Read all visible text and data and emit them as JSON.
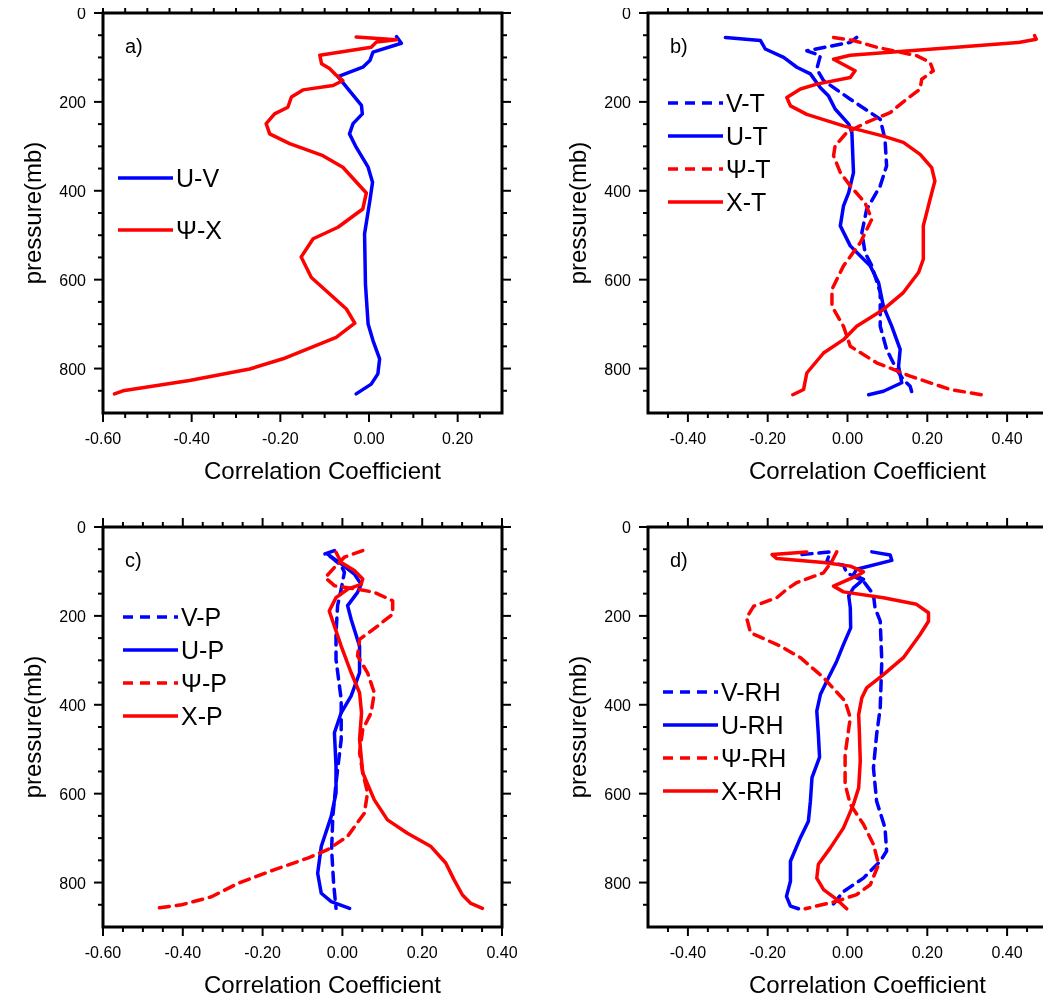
{
  "chart_data": [
    {
      "type": "line",
      "title": "a)",
      "xlabel": "Correlation Coefficient",
      "ylabel": "pressure(mb)",
      "xlim": [
        -0.6,
        0.3
      ],
      "ylim": [
        900,
        0
      ],
      "legend": "left",
      "grid": false,
      "xticks": [
        {
          "value": -0.6,
          "label": "-0.60"
        },
        {
          "value": -0.55,
          "label": null
        },
        {
          "value": -0.5,
          "label": null
        },
        {
          "value": -0.45,
          "label": null
        },
        {
          "value": -0.4,
          "label": "-0.40"
        },
        {
          "value": -0.35,
          "label": null
        },
        {
          "value": -0.3,
          "label": null
        },
        {
          "value": -0.25,
          "label": null
        },
        {
          "value": -0.2,
          "label": "-0.20"
        },
        {
          "value": -0.15,
          "label": null
        },
        {
          "value": -0.1,
          "label": null
        },
        {
          "value": -0.05,
          "label": null
        },
        {
          "value": 0,
          "label": "0.00"
        },
        {
          "value": 0.05,
          "label": null
        },
        {
          "value": 0.1,
          "label": null
        },
        {
          "value": 0.15,
          "label": null
        },
        {
          "value": 0.2,
          "label": "0.20"
        },
        {
          "value": 0.25,
          "label": null
        }
      ],
      "yticks": [
        0,
        {
          "value": 50,
          "label": null
        },
        {
          "value": 100,
          "label": null
        },
        {
          "value": 150,
          "label": null
        },
        200,
        {
          "value": 250,
          "label": null
        },
        {
          "value": 300,
          "label": null
        },
        {
          "value": 350,
          "label": null
        },
        400,
        {
          "value": 450,
          "label": null
        },
        {
          "value": 500,
          "label": null
        },
        {
          "value": 550,
          "label": null
        },
        600,
        {
          "value": 650,
          "label": null
        },
        {
          "value": 700,
          "label": null
        },
        {
          "value": 750,
          "label": null
        },
        800,
        {
          "value": 850,
          "label": null
        }
      ],
      "series": [
        {
          "name": "U-V",
          "color": "#0000ff",
          "line_style": "solid",
          "x": [
            0.062,
            0.073,
            0.009,
            0.002,
            -0.014,
            -0.07,
            -0.017,
            -0.015,
            -0.036,
            -0.044,
            -0.029,
            -0.002,
            0.008,
            0.002,
            -0.01,
            -0.008,
            -0.002,
            0.009,
            0.024,
            0.02,
            0.005,
            -0.029
          ],
          "values": [
            53,
            68,
            88,
            107,
            122,
            143,
            208,
            227,
            249,
            272,
            302,
            347,
            381,
            422,
            497,
            610,
            700,
            737,
            778,
            812,
            835,
            857
          ]
        },
        {
          "name": "Ψ-X",
          "color": "#ff0000",
          "line_style": "solid",
          "x": [
            -0.029,
            0.062,
            0.017,
            0.005,
            -0.111,
            -0.107,
            -0.089,
            -0.074,
            -0.059,
            -0.081,
            -0.149,
            -0.175,
            -0.183,
            -0.213,
            -0.232,
            -0.224,
            -0.179,
            -0.104,
            -0.059,
            -0.006,
            -0.014,
            -0.07,
            -0.126,
            -0.153,
            -0.13,
            -0.051,
            -0.032,
            -0.074,
            -0.194,
            -0.269,
            -0.405,
            -0.555,
            -0.574
          ],
          "values": [
            54,
            60,
            65,
            77,
            95,
            114,
            125,
            140,
            152,
            163,
            173,
            189,
            212,
            227,
            249,
            272,
            294,
            321,
            347,
            405,
            441,
            482,
            508,
            549,
            595,
            666,
            698,
            730,
            778,
            801,
            827,
            850,
            857
          ]
        }
      ]
    },
    {
      "type": "line",
      "title": "b)",
      "xlabel": "Correlation Coefficient",
      "ylabel": "pressure(mb)",
      "xlim": [
        -0.5,
        0.5
      ],
      "ylim": [
        900,
        0
      ],
      "legend": "top left",
      "grid": false,
      "xticks": [
        {
          "value": -0.45,
          "label": null
        },
        {
          "value": -0.4,
          "label": "-0.40"
        },
        {
          "value": -0.35,
          "label": null
        },
        {
          "value": -0.3,
          "label": null
        },
        {
          "value": -0.25,
          "label": null
        },
        {
          "value": -0.2,
          "label": "-0.20"
        },
        {
          "value": -0.15,
          "label": null
        },
        {
          "value": -0.1,
          "label": null
        },
        {
          "value": -0.05,
          "label": null
        },
        {
          "value": 0,
          "label": "0.00"
        },
        {
          "value": 0.05,
          "label": null
        },
        {
          "value": 0.1,
          "label": null
        },
        {
          "value": 0.15,
          "label": null
        },
        {
          "value": 0.2,
          "label": "0.20"
        },
        {
          "value": 0.25,
          "label": null
        },
        {
          "value": 0.3,
          "label": null
        },
        {
          "value": 0.35,
          "label": null
        },
        {
          "value": 0.4,
          "label": "0.40"
        },
        {
          "value": 0.45,
          "label": null
        }
      ],
      "yticks": [
        0,
        {
          "value": 50,
          "label": null
        },
        {
          "value": 100,
          "label": null
        },
        {
          "value": 150,
          "label": null
        },
        200,
        {
          "value": 250,
          "label": null
        },
        {
          "value": 300,
          "label": null
        },
        {
          "value": 350,
          "label": null
        },
        400,
        {
          "value": 450,
          "label": null
        },
        {
          "value": 500,
          "label": null
        },
        {
          "value": 550,
          "label": null
        },
        600,
        {
          "value": 650,
          "label": null
        },
        {
          "value": 700,
          "label": null
        },
        {
          "value": 750,
          "label": null
        },
        800,
        {
          "value": 850,
          "label": null
        }
      ],
      "series": [
        {
          "name": "V-T",
          "color": "#0000ff",
          "line_style": "dashed",
          "x": [
            0.023,
            0.007,
            -0.102,
            -0.068,
            -0.077,
            -0.06,
            0.007,
            0.082,
            0.094,
            0.098,
            0.082,
            0.048,
            0.036,
            0.044,
            0.061,
            0.082,
            0.082,
            0.098,
            0.123,
            0.14,
            0.157,
            0.163
          ],
          "values": [
            55,
            66,
            85,
            96,
            126,
            152,
            194,
            239,
            284,
            344,
            389,
            442,
            494,
            539,
            569,
            629,
            705,
            757,
            802,
            825,
            840,
            859
          ]
        },
        {
          "name": "U-T",
          "color": "#0000ff",
          "line_style": "solid",
          "x": [
            -0.306,
            -0.218,
            -0.206,
            -0.16,
            -0.127,
            -0.093,
            -0.068,
            -0.048,
            -0.031,
            0.003,
            0.011,
            0.015,
            0.003,
            -0.01,
            -0.018,
            0.007,
            0.057,
            0.078,
            0.09,
            0.111,
            0.132,
            0.128,
            0.136,
            0.09,
            0.053
          ],
          "values": [
            55,
            62,
            81,
            100,
            122,
            137,
            168,
            186,
            216,
            250,
            269,
            359,
            404,
            434,
            479,
            524,
            569,
            607,
            660,
            705,
            757,
            795,
            832,
            851,
            859
          ]
        },
        {
          "name": "Ψ-T",
          "color": "#ff0000",
          "line_style": "dashed",
          "x": [
            -0.035,
            0.015,
            0.073,
            0.173,
            0.207,
            0.215,
            0.186,
            0.182,
            0.148,
            0.107,
            0.048,
            -0.002,
            -0.031,
            -0.035,
            -0.018,
            0.007,
            0.044,
            0.061,
            0.032,
            -0.01,
            -0.039,
            -0.039,
            -0.01,
            0.007,
            0.073,
            0.157,
            0.257,
            0.336
          ],
          "values": [
            55,
            62,
            77,
            96,
            111,
            130,
            149,
            171,
            194,
            224,
            246,
            269,
            299,
            321,
            359,
            389,
            427,
            464,
            517,
            569,
            622,
            660,
            705,
            750,
            787,
            817,
            847,
            859
          ]
        },
        {
          "name": "X-T",
          "color": "#ff0000",
          "line_style": "solid",
          "x": [
            0.469,
            0.473,
            0.432,
            0.273,
            0.123,
            0.007,
            -0.035,
            0.019,
            0.007,
            -0.077,
            -0.118,
            -0.152,
            -0.143,
            -0.102,
            -0.01,
            0.09,
            0.14,
            0.182,
            0.211,
            0.219,
            0.207,
            0.19,
            0.19,
            0.178,
            0.14,
            0.09,
            0.023,
            -0.01,
            -0.06,
            -0.102,
            -0.11,
            -0.137
          ],
          "values": [
            51,
            59,
            66,
            77,
            87,
            95,
            104,
            130,
            145,
            160,
            171,
            190,
            209,
            228,
            254,
            277,
            291,
            318,
            348,
            378,
            419,
            479,
            554,
            584,
            629,
            667,
            705,
            735,
            765,
            810,
            847,
            859
          ]
        }
      ]
    },
    {
      "type": "line",
      "title": "c)",
      "xlabel": "Correlation Coefficient",
      "ylabel": "pressure(mb)",
      "xlim": [
        -0.6,
        0.4
      ],
      "ylim": [
        900,
        0
      ],
      "legend": "top left",
      "grid": false,
      "xticks": [
        {
          "value": -0.6,
          "label": "-0.60"
        },
        {
          "value": -0.55,
          "label": null
        },
        {
          "value": -0.5,
          "label": null
        },
        {
          "value": -0.45,
          "label": null
        },
        {
          "value": -0.4,
          "label": "-0.40"
        },
        {
          "value": -0.35,
          "label": null
        },
        {
          "value": -0.3,
          "label": null
        },
        {
          "value": -0.25,
          "label": null
        },
        {
          "value": -0.2,
          "label": "-0.20"
        },
        {
          "value": -0.15,
          "label": null
        },
        {
          "value": -0.1,
          "label": null
        },
        {
          "value": -0.05,
          "label": null
        },
        {
          "value": 0,
          "label": "0.00"
        },
        {
          "value": 0.05,
          "label": null
        },
        {
          "value": 0.1,
          "label": null
        },
        {
          "value": 0.15,
          "label": null
        },
        {
          "value": 0.2,
          "label": "0.20"
        },
        {
          "value": 0.25,
          "label": null
        },
        {
          "value": 0.3,
          "label": null
        },
        {
          "value": 0.35,
          "label": null
        },
        {
          "value": 0.4,
          "label": "0.40"
        }
      ],
      "yticks": [
        0,
        {
          "value": 50,
          "label": null
        },
        {
          "value": 100,
          "label": null
        },
        {
          "value": 150,
          "label": null
        },
        200,
        {
          "value": 250,
          "label": null
        },
        {
          "value": 300,
          "label": null
        },
        {
          "value": 350,
          "label": null
        },
        400,
        {
          "value": 450,
          "label": null
        },
        {
          "value": 500,
          "label": null
        },
        {
          "value": 550,
          "label": null
        },
        600,
        {
          "value": 650,
          "label": null
        },
        {
          "value": 700,
          "label": null
        },
        {
          "value": 750,
          "label": null
        },
        800,
        {
          "value": 850,
          "label": null
        }
      ],
      "series": [
        {
          "name": "V-P",
          "color": "#0000ff",
          "line_style": "dashed",
          "x": [
            -0.02,
            -0.045,
            -0.028,
            -0.003,
            0.005,
            -0.003,
            -0.012,
            -0.016,
            -0.016,
            -0.003,
            -0.003,
            -0.016,
            -0.024,
            -0.027,
            -0.022,
            -0.016
          ],
          "values": [
            53,
            61,
            68,
            87,
            102,
            140,
            177,
            238,
            298,
            388,
            478,
            576,
            651,
            726,
            802,
            858
          ]
        },
        {
          "name": "U-P",
          "color": "#0000ff",
          "line_style": "solid",
          "x": [
            -0.037,
            -0.003,
            0.03,
            0.047,
            0.038,
            0.013,
            0.022,
            0.043,
            0.043,
            0.022,
            -0.003,
            -0.02,
            -0.016,
            -0.016,
            -0.028,
            -0.053,
            -0.062,
            -0.053,
            -0.028,
            0.018
          ],
          "values": [
            61,
            83,
            106,
            129,
            147,
            177,
            208,
            268,
            328,
            380,
            418,
            463,
            538,
            598,
            651,
            719,
            779,
            824,
            843,
            858
          ]
        },
        {
          "name": "Ψ-P",
          "color": "#ff0000",
          "line_style": "dashed",
          "x": [
            0.051,
            0.005,
            -0.02,
            -0.043,
            -0.02,
            0.038,
            0.08,
            0.126,
            0.126,
            0.088,
            0.043,
            0.038,
            0.063,
            0.08,
            0.072,
            0.051,
            0.043,
            0.051,
            0.063,
            0.055,
            0.013,
            -0.037,
            -0.087,
            -0.17,
            -0.262,
            -0.328,
            -0.403,
            -0.47
          ],
          "values": [
            53,
            68,
            91,
            114,
            132,
            140,
            147,
            166,
            196,
            223,
            253,
            290,
            328,
            373,
            418,
            456,
            508,
            553,
            598,
            644,
            696,
            726,
            745,
            771,
            802,
            832,
            850,
            858
          ]
        },
        {
          "name": "X-P",
          "color": "#ff0000",
          "line_style": "solid",
          "x": [
            -0.016,
            -0.003,
            0.03,
            0.051,
            0.047,
            0.013,
            -0.016,
            -0.033,
            -0.02,
            -0.003,
            0.022,
            0.043,
            0.048,
            0.043,
            0.051,
            0.08,
            0.113,
            0.163,
            0.222,
            0.259,
            0.28,
            0.301,
            0.322,
            0.351
          ],
          "values": [
            57,
            80,
            98,
            117,
            129,
            140,
            159,
            189,
            223,
            268,
            328,
            373,
            418,
            478,
            553,
            614,
            659,
            689,
            719,
            756,
            794,
            828,
            847,
            858
          ]
        }
      ]
    },
    {
      "type": "line",
      "title": "d)",
      "xlabel": "Correlation Coefficient",
      "ylabel": "pressure(mb)",
      "xlim": [
        -0.5,
        0.5
      ],
      "ylim": [
        900,
        0
      ],
      "legend": "left",
      "grid": false,
      "xticks": [
        {
          "value": -0.45,
          "label": null
        },
        {
          "value": -0.4,
          "label": "-0.40"
        },
        {
          "value": -0.35,
          "label": null
        },
        {
          "value": -0.3,
          "label": null
        },
        {
          "value": -0.25,
          "label": null
        },
        {
          "value": -0.2,
          "label": "-0.20"
        },
        {
          "value": -0.15,
          "label": null
        },
        {
          "value": -0.1,
          "label": null
        },
        {
          "value": -0.05,
          "label": null
        },
        {
          "value": 0,
          "label": "0.00"
        },
        {
          "value": 0.05,
          "label": null
        },
        {
          "value": 0.1,
          "label": null
        },
        {
          "value": 0.15,
          "label": null
        },
        {
          "value": 0.2,
          "label": "0.20"
        },
        {
          "value": 0.25,
          "label": null
        },
        {
          "value": 0.3,
          "label": null
        },
        {
          "value": 0.35,
          "label": null
        },
        {
          "value": 0.4,
          "label": "0.40"
        },
        {
          "value": 0.45,
          "label": null
        }
      ],
      "yticks": [
        0,
        {
          "value": 50,
          "label": null
        },
        {
          "value": 100,
          "label": null
        },
        {
          "value": 150,
          "label": null
        },
        200,
        {
          "value": 250,
          "label": null
        },
        {
          "value": 300,
          "label": null
        },
        {
          "value": 350,
          "label": null
        },
        400,
        {
          "value": 450,
          "label": null
        },
        {
          "value": 500,
          "label": null
        },
        {
          "value": 550,
          "label": null
        },
        600,
        {
          "value": 650,
          "label": null
        },
        {
          "value": 700,
          "label": null
        },
        {
          "value": 750,
          "label": null
        },
        800,
        {
          "value": 850,
          "label": null
        }
      ],
      "series": [
        {
          "name": "V-RH",
          "color": "#0000ff",
          "line_style": "dashed",
          "x": [
            -0.114,
            -0.043,
            -0.052,
            -0.01,
            -0.002,
            0.04,
            0.065,
            0.069,
            0.082,
            0.086,
            0.082,
            0.073,
            0.065,
            0.073,
            0.094,
            0.098,
            0.082,
            0.04,
            -0.01,
            -0.043
          ],
          "values": [
            62,
            56,
            78,
            86,
            103,
            122,
            152,
            182,
            212,
            302,
            407,
            467,
            542,
            617,
            677,
            729,
            752,
            790,
            820,
            857
          ]
        },
        {
          "name": "U-RH",
          "color": "#0000ff",
          "line_style": "solid",
          "x": [
            0.061,
            0.107,
            0.111,
            0.023,
            0.015,
            0.04,
            0.015,
            0.003,
            0.007,
            0.008,
            -0.01,
            -0.027,
            -0.052,
            -0.068,
            -0.077,
            -0.073,
            -0.07,
            -0.089,
            -0.093,
            -0.098,
            -0.118,
            -0.143,
            -0.143,
            -0.153,
            -0.143,
            -0.123
          ],
          "values": [
            56,
            63,
            75,
            95,
            107,
            118,
            137,
            155,
            182,
            227,
            264,
            302,
            347,
            377,
            414,
            467,
            518,
            564,
            617,
            662,
            699,
            752,
            797,
            831,
            853,
            859
          ]
        },
        {
          "name": "Ψ-RH",
          "color": "#ff0000",
          "line_style": "dashed",
          "x": [
            -0.027,
            -0.039,
            -0.06,
            -0.127,
            -0.152,
            -0.177,
            -0.235,
            -0.253,
            -0.243,
            -0.168,
            -0.118,
            -0.06,
            -0.006,
            0.007,
            -0.006,
            -0.006,
            0.007,
            0.04,
            0.065,
            0.078,
            0.057,
            0.023,
            -0.027,
            -0.106
          ],
          "values": [
            56,
            77,
            103,
            125,
            140,
            159,
            178,
            204,
            238,
            268,
            294,
            339,
            392,
            429,
            512,
            579,
            624,
            669,
            714,
            759,
            805,
            827,
            842,
            859
          ]
        },
        {
          "name": "X-RH",
          "color": "#ff0000",
          "line_style": "solid",
          "x": [
            -0.102,
            -0.189,
            -0.177,
            -0.06,
            0.007,
            0.04,
            0.023,
            -0.035,
            -0.01,
            0.09,
            0.173,
            0.203,
            0.203,
            0.182,
            0.14,
            0.09,
            0.048,
            0.036,
            0.028,
            0.03,
            0.032,
            0.028,
            0.015,
            -0.01,
            -0.043,
            -0.073,
            -0.077,
            -0.06,
            -0.027,
            -0.002
          ],
          "values": [
            56,
            62,
            71,
            80,
            88,
            101,
            110,
            133,
            146,
            159,
            174,
            193,
            212,
            242,
            294,
            332,
            362,
            384,
            422,
            467,
            527,
            587,
            624,
            677,
            722,
            759,
            790,
            816,
            838,
            859
          ]
        }
      ]
    }
  ]
}
